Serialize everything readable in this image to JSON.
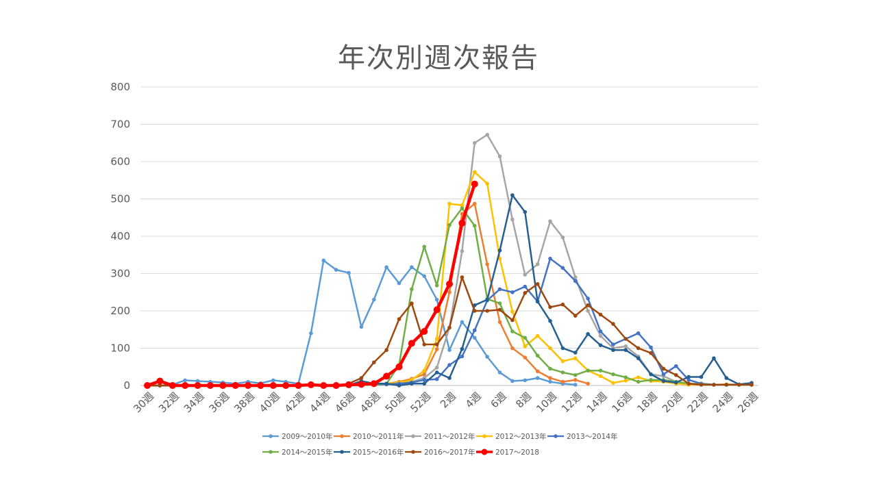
{
  "chart_data": {
    "type": "line",
    "title": "年次別週次報告",
    "xlabel": "",
    "ylabel": "",
    "ylim": [
      0,
      800
    ],
    "yticks": [
      0,
      100,
      200,
      300,
      400,
      500,
      600,
      700,
      800
    ],
    "y_tick_labels": [
      "0",
      "100",
      "200",
      "300",
      "400",
      "500",
      "600",
      "700",
      "800"
    ],
    "grid": true,
    "legend_position": "bottom",
    "x": [
      "30週",
      "31週",
      "32週",
      "33週",
      "34週",
      "35週",
      "36週",
      "37週",
      "38週",
      "39週",
      "40週",
      "41週",
      "42週",
      "43週",
      "44週",
      "45週",
      "46週",
      "47週",
      "48週",
      "49週",
      "50週",
      "51週",
      "52週",
      "1週",
      "2週",
      "3週",
      "4週",
      "5週",
      "6週",
      "7週",
      "8週",
      "9週",
      "10週",
      "11週",
      "12週",
      "13週",
      "14週",
      "15週",
      "16週",
      "17週",
      "18週",
      "19週",
      "20週",
      "21週",
      "22週",
      "23週",
      "24週",
      "25週",
      "26週"
    ],
    "x_tick_labels": [
      "30週",
      "32週",
      "34週",
      "36週",
      "38週",
      "40週",
      "42週",
      "44週",
      "46週",
      "48週",
      "50週",
      "52週",
      "2週",
      "4週",
      "6週",
      "8週",
      "10週",
      "12週",
      "14週",
      "16週",
      "18週",
      "20週",
      "22週",
      "24週",
      "26週"
    ],
    "series": [
      {
        "name": "2009～2010年",
        "color": "#5B9BD5",
        "width": 2.5,
        "marker": 2.8,
        "values": [
          0,
          10,
          2,
          14,
          12,
          10,
          8,
          5,
          10,
          6,
          14,
          10,
          5,
          140,
          335,
          310,
          302,
          157,
          230,
          317,
          274,
          317,
          293,
          230,
          95,
          170,
          128,
          77,
          35,
          12,
          14,
          20,
          10,
          5,
          2,
          null,
          null,
          null,
          null,
          null,
          null,
          null,
          null,
          null,
          null,
          null,
          null,
          null,
          null
        ]
      },
      {
        "name": "2010～2011年",
        "color": "#ED7D31",
        "width": 2.5,
        "marker": 2.8,
        "values": [
          0,
          0,
          0,
          0,
          0,
          0,
          0,
          0,
          0,
          0,
          0,
          0,
          0,
          0,
          0,
          0,
          0,
          2,
          4,
          5,
          10,
          18,
          30,
          97,
          250,
          460,
          487,
          325,
          170,
          100,
          75,
          38,
          20,
          10,
          15,
          5,
          null,
          null,
          null,
          null,
          null,
          null,
          null,
          null,
          null,
          null,
          null,
          null,
          null
        ]
      },
      {
        "name": "2011～2012年",
        "color": "#A5A5A5",
        "width": 2.5,
        "marker": 2.8,
        "values": [
          0,
          0,
          0,
          0,
          0,
          0,
          0,
          0,
          0,
          0,
          0,
          0,
          0,
          0,
          0,
          0,
          0,
          2,
          3,
          4,
          6,
          10,
          20,
          48,
          155,
          360,
          650,
          672,
          614,
          445,
          297,
          325,
          440,
          397,
          290,
          200,
          133,
          100,
          105,
          78,
          30,
          25,
          10,
          5,
          5,
          2,
          3,
          2,
          2
        ]
      },
      {
        "name": "2012～2013年",
        "color": "#FFC000",
        "width": 2.5,
        "marker": 2.8,
        "values": [
          0,
          0,
          0,
          0,
          0,
          0,
          0,
          0,
          0,
          0,
          0,
          0,
          0,
          0,
          0,
          0,
          0,
          2,
          3,
          5,
          8,
          15,
          40,
          125,
          487,
          483,
          572,
          541,
          340,
          198,
          105,
          133,
          100,
          65,
          73,
          40,
          25,
          7,
          13,
          22,
          12,
          10,
          5,
          2,
          2,
          2,
          3,
          2,
          2
        ]
      },
      {
        "name": "2013～2014年",
        "color": "#4472C4",
        "width": 2.5,
        "marker": 2.8,
        "values": [
          0,
          0,
          0,
          0,
          0,
          0,
          0,
          0,
          0,
          0,
          0,
          0,
          0,
          0,
          0,
          0,
          0,
          2,
          2,
          3,
          5,
          8,
          15,
          17,
          55,
          78,
          148,
          228,
          258,
          250,
          265,
          225,
          340,
          315,
          280,
          233,
          145,
          110,
          125,
          140,
          102,
          30,
          52,
          15,
          5,
          2,
          2,
          2,
          2
        ]
      },
      {
        "name": "2014～2015年",
        "color": "#70AD47",
        "width": 2.5,
        "marker": 2.8,
        "values": [
          0,
          0,
          0,
          0,
          0,
          0,
          0,
          0,
          0,
          0,
          0,
          0,
          0,
          0,
          0,
          0,
          0,
          1,
          2,
          5,
          55,
          258,
          372,
          268,
          430,
          475,
          428,
          232,
          220,
          145,
          128,
          80,
          45,
          35,
          28,
          40,
          40,
          30,
          22,
          10,
          15,
          15,
          10,
          5,
          3,
          2,
          2,
          2,
          2
        ]
      },
      {
        "name": "2015～2016年",
        "color": "#255E91",
        "width": 2.5,
        "marker": 2.8,
        "values": [
          0,
          0,
          0,
          0,
          0,
          0,
          0,
          0,
          0,
          0,
          0,
          0,
          0,
          0,
          0,
          0,
          0,
          12,
          5,
          5,
          0,
          5,
          5,
          35,
          20,
          98,
          215,
          230,
          362,
          510,
          465,
          225,
          173,
          100,
          88,
          138,
          108,
          95,
          95,
          73,
          30,
          12,
          8,
          23,
          23,
          73,
          20,
          3,
          7
        ]
      },
      {
        "name": "2016～2017年",
        "color": "#9E480E",
        "width": 2.5,
        "marker": 2.8,
        "values": [
          0,
          0,
          0,
          0,
          0,
          0,
          0,
          0,
          0,
          0,
          0,
          0,
          0,
          0,
          0,
          0,
          5,
          20,
          62,
          95,
          178,
          220,
          110,
          110,
          155,
          290,
          200,
          200,
          203,
          175,
          248,
          272,
          210,
          217,
          187,
          215,
          190,
          165,
          125,
          100,
          87,
          45,
          28,
          5,
          2,
          2,
          2,
          2,
          2
        ]
      },
      {
        "name": "2017～2018",
        "color": "#FF0000",
        "width": 4.5,
        "marker": 5,
        "values": [
          0,
          12,
          0,
          0,
          0,
          0,
          0,
          0,
          0,
          0,
          0,
          0,
          0,
          2,
          0,
          0,
          2,
          3,
          5,
          25,
          50,
          113,
          145,
          203,
          272,
          435,
          540,
          null,
          null,
          null,
          null,
          null,
          null,
          null,
          null,
          null,
          null,
          null,
          null,
          null,
          null,
          null,
          null,
          null,
          null,
          null,
          null,
          null,
          null
        ]
      }
    ]
  }
}
